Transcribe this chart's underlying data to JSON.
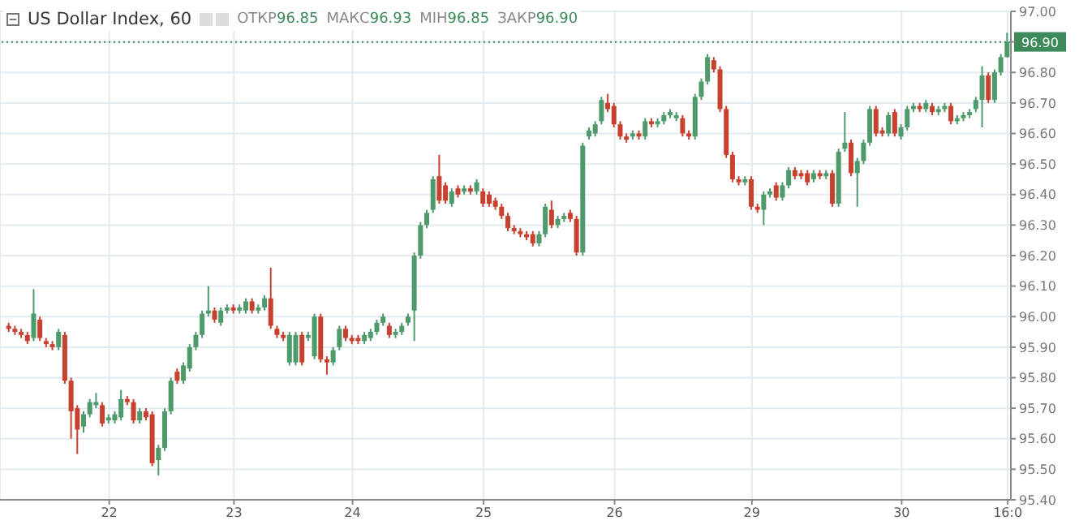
{
  "chart_data": {
    "type": "candlestick",
    "title": "US Dollar Index, 60",
    "annotations": [
      "ОТКР96.85",
      "МАКС96.93",
      "МІН96.85",
      "ЗАКР96.90"
    ],
    "categories": [
      null,
      null,
      null,
      null,
      null,
      null,
      null,
      null,
      null,
      null,
      null,
      null,
      null,
      null,
      null,
      null,
      "22",
      null,
      null,
      null,
      null,
      null,
      null,
      null,
      null,
      null,
      null,
      null,
      null,
      null,
      null,
      null,
      null,
      null,
      null,
      null,
      "23",
      null,
      null,
      null,
      null,
      null,
      null,
      null,
      null,
      null,
      null,
      null,
      null,
      null,
      null,
      null,
      null,
      null,
      null,
      "24",
      null,
      null,
      null,
      null,
      null,
      null,
      null,
      null,
      null,
      null,
      null,
      null,
      null,
      null,
      null,
      null,
      null,
      null,
      null,
      null,
      "25",
      null,
      null,
      null,
      null,
      null,
      null,
      null,
      null,
      null,
      null,
      null,
      null,
      null,
      null,
      null,
      null,
      null,
      null,
      null,
      null,
      "26",
      null,
      null,
      null,
      null,
      null,
      null,
      null,
      null,
      null,
      null,
      null,
      null,
      null,
      null,
      null,
      null,
      null,
      null,
      null,
      null,
      null,
      "29",
      null,
      null,
      null,
      null,
      null,
      null,
      null,
      null,
      null,
      null,
      null,
      null,
      null,
      null,
      null,
      null,
      null,
      null,
      null,
      null,
      null,
      null,
      null,
      "30",
      null,
      null,
      null,
      null,
      null,
      null,
      null,
      null,
      null,
      null,
      null,
      null,
      null,
      null,
      null,
      null,
      "16:0"
    ],
    "ohlc": [
      [
        95.97,
        95.98,
        95.95,
        95.96
      ],
      [
        95.96,
        95.97,
        95.94,
        95.95
      ],
      [
        95.95,
        95.96,
        95.93,
        95.94
      ],
      [
        95.94,
        95.95,
        95.91,
        95.92
      ],
      [
        95.93,
        96.09,
        95.92,
        96.01
      ],
      [
        95.99,
        96.0,
        95.92,
        95.93
      ],
      [
        95.92,
        95.93,
        95.9,
        95.91
      ],
      [
        95.91,
        95.92,
        95.89,
        95.9
      ],
      [
        95.9,
        95.96,
        95.89,
        95.95
      ],
      [
        95.94,
        95.95,
        95.78,
        95.79
      ],
      [
        95.79,
        95.8,
        95.6,
        95.69
      ],
      [
        95.7,
        95.71,
        95.55,
        95.63
      ],
      [
        95.64,
        95.69,
        95.62,
        95.68
      ],
      [
        95.68,
        95.73,
        95.67,
        95.72
      ],
      [
        95.71,
        95.75,
        95.7,
        95.72
      ],
      [
        95.71,
        95.72,
        95.64,
        95.65
      ],
      [
        95.66,
        95.68,
        95.65,
        95.67
      ],
      [
        95.66,
        95.69,
        95.65,
        95.68
      ],
      [
        95.67,
        95.76,
        95.66,
        95.73
      ],
      [
        95.73,
        95.74,
        95.71,
        95.72
      ],
      [
        95.72,
        95.73,
        95.65,
        95.66
      ],
      [
        95.66,
        95.7,
        95.65,
        95.69
      ],
      [
        95.69,
        95.7,
        95.66,
        95.67
      ],
      [
        95.68,
        95.69,
        95.51,
        95.52
      ],
      [
        95.53,
        95.58,
        95.48,
        95.57
      ],
      [
        95.57,
        95.7,
        95.56,
        95.69
      ],
      [
        95.69,
        95.8,
        95.68,
        95.79
      ],
      [
        95.82,
        95.83,
        95.78,
        95.79
      ],
      [
        95.79,
        95.85,
        95.78,
        95.84
      ],
      [
        95.83,
        95.91,
        95.82,
        95.9
      ],
      [
        95.9,
        95.95,
        95.89,
        95.94
      ],
      [
        95.94,
        96.02,
        95.93,
        96.01
      ],
      [
        96.01,
        96.1,
        96.0,
        96.02
      ],
      [
        96.02,
        96.03,
        95.98,
        95.99
      ],
      [
        95.98,
        96.03,
        95.97,
        96.02
      ],
      [
        96.02,
        96.04,
        96.01,
        96.03
      ],
      [
        96.03,
        96.04,
        96.01,
        96.02
      ],
      [
        96.02,
        96.04,
        96.01,
        96.03
      ],
      [
        96.02,
        96.06,
        96.01,
        96.05
      ],
      [
        96.05,
        96.06,
        96.01,
        96.02
      ],
      [
        96.02,
        96.04,
        96.01,
        96.03
      ],
      [
        96.03,
        96.07,
        96.02,
        96.06
      ],
      [
        96.06,
        96.16,
        95.96,
        95.97
      ],
      [
        95.96,
        95.97,
        95.93,
        95.94
      ],
      [
        95.94,
        95.95,
        95.92,
        95.93
      ],
      [
        95.85,
        95.95,
        95.84,
        95.94
      ],
      [
        95.85,
        95.95,
        95.84,
        95.94
      ],
      [
        95.94,
        95.95,
        95.84,
        95.85
      ],
      [
        95.93,
        95.95,
        95.92,
        95.94
      ],
      [
        95.87,
        96.01,
        95.86,
        96.0
      ],
      [
        96.0,
        96.01,
        95.85,
        95.86
      ],
      [
        95.86,
        95.87,
        95.81,
        95.85
      ],
      [
        95.85,
        95.9,
        95.84,
        95.89
      ],
      [
        95.9,
        95.97,
        95.89,
        95.96
      ],
      [
        95.96,
        95.97,
        95.92,
        95.93
      ],
      [
        95.93,
        95.94,
        95.91,
        95.92
      ],
      [
        95.93,
        95.94,
        95.91,
        95.92
      ],
      [
        95.92,
        95.95,
        95.91,
        95.94
      ],
      [
        95.93,
        95.96,
        95.92,
        95.95
      ],
      [
        95.95,
        95.99,
        95.94,
        95.98
      ],
      [
        95.98,
        96.01,
        95.97,
        96.0
      ],
      [
        95.97,
        95.98,
        95.93,
        95.94
      ],
      [
        95.94,
        95.96,
        95.93,
        95.95
      ],
      [
        95.95,
        95.98,
        95.94,
        95.97
      ],
      [
        95.98,
        96.01,
        95.97,
        96.0
      ],
      [
        96.02,
        96.21,
        95.92,
        96.2
      ],
      [
        96.2,
        96.31,
        96.19,
        96.3
      ],
      [
        96.3,
        96.35,
        96.29,
        96.34
      ],
      [
        96.35,
        96.46,
        96.34,
        96.45
      ],
      [
        96.46,
        96.53,
        96.37,
        96.38
      ],
      [
        96.43,
        96.44,
        96.37,
        96.38
      ],
      [
        96.37,
        96.42,
        96.36,
        96.41
      ],
      [
        96.42,
        96.43,
        96.39,
        96.4
      ],
      [
        96.41,
        96.43,
        96.4,
        96.42
      ],
      [
        96.42,
        96.43,
        96.4,
        96.41
      ],
      [
        96.41,
        96.45,
        96.4,
        96.44
      ],
      [
        96.41,
        96.42,
        96.36,
        96.37
      ],
      [
        96.4,
        96.41,
        96.36,
        96.37
      ],
      [
        96.38,
        96.39,
        96.35,
        96.36
      ],
      [
        96.36,
        96.37,
        96.32,
        96.33
      ],
      [
        96.33,
        96.34,
        96.28,
        96.29
      ],
      [
        96.29,
        96.3,
        96.27,
        96.28
      ],
      [
        96.28,
        96.29,
        96.26,
        96.27
      ],
      [
        96.27,
        96.28,
        96.25,
        96.26
      ],
      [
        96.27,
        96.28,
        96.23,
        96.24
      ],
      [
        96.24,
        96.28,
        96.23,
        96.27
      ],
      [
        96.27,
        96.37,
        96.26,
        96.36
      ],
      [
        96.35,
        96.38,
        96.29,
        96.3
      ],
      [
        96.3,
        96.33,
        96.29,
        96.32
      ],
      [
        96.32,
        96.34,
        96.31,
        96.33
      ],
      [
        96.34,
        96.35,
        96.31,
        96.32
      ],
      [
        96.32,
        96.33,
        96.2,
        96.21
      ],
      [
        96.21,
        96.57,
        96.2,
        96.56
      ],
      [
        96.59,
        96.62,
        96.58,
        96.61
      ],
      [
        96.6,
        96.64,
        96.59,
        96.63
      ],
      [
        96.64,
        96.72,
        96.63,
        96.71
      ],
      [
        96.7,
        96.73,
        96.67,
        96.68
      ],
      [
        96.69,
        96.7,
        96.62,
        96.63
      ],
      [
        96.63,
        96.64,
        96.58,
        96.59
      ],
      [
        96.59,
        96.6,
        96.57,
        96.58
      ],
      [
        96.59,
        96.61,
        96.58,
        96.6
      ],
      [
        96.6,
        96.61,
        96.58,
        96.59
      ],
      [
        96.59,
        96.65,
        96.58,
        96.64
      ],
      [
        96.64,
        96.65,
        96.62,
        96.63
      ],
      [
        96.63,
        96.65,
        96.62,
        96.64
      ],
      [
        96.64,
        96.67,
        96.63,
        96.66
      ],
      [
        96.66,
        96.68,
        96.65,
        96.67
      ],
      [
        96.65,
        96.67,
        96.64,
        96.66
      ],
      [
        96.65,
        96.66,
        96.59,
        96.6
      ],
      [
        96.6,
        96.61,
        96.58,
        96.59
      ],
      [
        96.59,
        96.73,
        96.58,
        96.72
      ],
      [
        96.72,
        96.78,
        96.71,
        96.77
      ],
      [
        96.77,
        96.86,
        96.76,
        96.85
      ],
      [
        96.84,
        96.85,
        96.8,
        96.81
      ],
      [
        96.81,
        96.82,
        96.67,
        96.68
      ],
      [
        96.68,
        96.69,
        96.52,
        96.53
      ],
      [
        96.53,
        96.54,
        96.44,
        96.45
      ],
      [
        96.45,
        96.46,
        96.43,
        96.44
      ],
      [
        96.44,
        96.46,
        96.43,
        96.45
      ],
      [
        96.45,
        96.46,
        96.35,
        96.36
      ],
      [
        96.36,
        96.37,
        96.34,
        96.35
      ],
      [
        96.35,
        96.41,
        96.3,
        96.4
      ],
      [
        96.4,
        96.42,
        96.39,
        96.41
      ],
      [
        96.43,
        96.44,
        96.38,
        96.39
      ],
      [
        96.39,
        96.44,
        96.38,
        96.43
      ],
      [
        96.43,
        96.49,
        96.42,
        96.48
      ],
      [
        96.48,
        96.49,
        96.45,
        96.46
      ],
      [
        96.47,
        96.48,
        96.45,
        96.46
      ],
      [
        96.47,
        96.48,
        96.43,
        96.44
      ],
      [
        96.45,
        96.48,
        96.44,
        96.47
      ],
      [
        96.47,
        96.48,
        96.45,
        96.46
      ],
      [
        96.46,
        96.48,
        96.45,
        96.47
      ],
      [
        96.47,
        96.48,
        96.36,
        96.37
      ],
      [
        96.37,
        96.55,
        96.36,
        96.54
      ],
      [
        96.55,
        96.67,
        96.54,
        96.57
      ],
      [
        96.57,
        96.58,
        96.46,
        96.47
      ],
      [
        96.47,
        96.52,
        96.36,
        96.51
      ],
      [
        96.51,
        96.58,
        96.5,
        96.57
      ],
      [
        96.57,
        96.69,
        96.56,
        96.68
      ],
      [
        96.68,
        96.69,
        96.59,
        96.6
      ],
      [
        96.61,
        96.62,
        96.59,
        96.6
      ],
      [
        96.6,
        96.67,
        96.59,
        96.66
      ],
      [
        96.67,
        96.68,
        96.59,
        96.6
      ],
      [
        96.59,
        96.63,
        96.58,
        96.62
      ],
      [
        96.62,
        96.69,
        96.61,
        96.68
      ],
      [
        96.68,
        96.7,
        96.67,
        96.69
      ],
      [
        96.69,
        96.7,
        96.67,
        96.68
      ],
      [
        96.68,
        96.71,
        96.67,
        96.7
      ],
      [
        96.69,
        96.7,
        96.66,
        96.67
      ],
      [
        96.67,
        96.69,
        96.66,
        96.68
      ],
      [
        96.68,
        96.7,
        96.67,
        96.69
      ],
      [
        96.69,
        96.7,
        96.63,
        96.64
      ],
      [
        96.64,
        96.66,
        96.63,
        96.65
      ],
      [
        96.65,
        96.67,
        96.64,
        96.66
      ],
      [
        96.66,
        96.68,
        96.65,
        96.67
      ],
      [
        96.68,
        96.72,
        96.67,
        96.71
      ],
      [
        96.71,
        96.82,
        96.62,
        96.79
      ],
      [
        96.79,
        96.8,
        96.7,
        96.71
      ],
      [
        96.71,
        96.81,
        96.7,
        96.8
      ],
      [
        96.8,
        96.86,
        96.79,
        96.85
      ],
      [
        96.85,
        96.93,
        96.85,
        96.9
      ]
    ],
    "colors": [
      "#c8412f",
      "#c8412f",
      "#c8412f",
      "#c8412f",
      "#4e9a6b",
      "#c8412f",
      "#c8412f",
      "#c8412f",
      "#4e9a6b",
      "#c8412f",
      "#c8412f",
      "#c8412f",
      "#4e9a6b",
      "#4e9a6b",
      "#4e9a6b",
      "#c8412f",
      "#4e9a6b",
      "#4e9a6b",
      "#4e9a6b",
      "#c8412f",
      "#c8412f",
      "#4e9a6b",
      "#c8412f",
      "#c8412f",
      "#4e9a6b",
      "#4e9a6b",
      "#4e9a6b",
      "#c8412f",
      "#4e9a6b",
      "#4e9a6b",
      "#4e9a6b",
      "#4e9a6b",
      "#4e9a6b",
      "#c8412f",
      "#4e9a6b",
      "#4e9a6b",
      "#c8412f",
      "#4e9a6b",
      "#4e9a6b",
      "#c8412f",
      "#4e9a6b",
      "#4e9a6b",
      "#c8412f",
      "#c8412f",
      "#c8412f",
      "#4e9a6b",
      "#4e9a6b",
      "#c8412f",
      "#4e9a6b",
      "#4e9a6b",
      "#c8412f",
      "#c8412f",
      "#4e9a6b",
      "#4e9a6b",
      "#c8412f",
      "#c8412f",
      "#c8412f",
      "#4e9a6b",
      "#4e9a6b",
      "#4e9a6b",
      "#4e9a6b",
      "#c8412f",
      "#4e9a6b",
      "#4e9a6b",
      "#4e9a6b",
      "#4e9a6b",
      "#4e9a6b",
      "#4e9a6b",
      "#4e9a6b",
      "#c8412f",
      "#c8412f",
      "#4e9a6b",
      "#c8412f",
      "#4e9a6b",
      "#c8412f",
      "#4e9a6b",
      "#c8412f",
      "#c8412f",
      "#c8412f",
      "#c8412f",
      "#c8412f",
      "#c8412f",
      "#c8412f",
      "#c8412f",
      "#c8412f",
      "#4e9a6b",
      "#4e9a6b",
      "#c8412f",
      "#4e9a6b",
      "#4e9a6b",
      "#c8412f",
      "#c8412f",
      "#4e9a6b",
      "#4e9a6b",
      "#4e9a6b",
      "#4e9a6b",
      "#c8412f",
      "#c8412f",
      "#c8412f",
      "#c8412f",
      "#4e9a6b",
      "#c8412f",
      "#4e9a6b",
      "#c8412f",
      "#4e9a6b",
      "#4e9a6b",
      "#4e9a6b",
      "#4e9a6b",
      "#c8412f",
      "#c8412f",
      "#4e9a6b",
      "#4e9a6b",
      "#4e9a6b",
      "#c8412f",
      "#c8412f",
      "#c8412f",
      "#c8412f",
      "#c8412f",
      "#4e9a6b",
      "#c8412f",
      "#c8412f",
      "#4e9a6b",
      "#4e9a6b",
      "#c8412f",
      "#4e9a6b",
      "#4e9a6b",
      "#c8412f",
      "#c8412f",
      "#c8412f",
      "#4e9a6b",
      "#c8412f",
      "#4e9a6b",
      "#c8412f",
      "#4e9a6b",
      "#4e9a6b",
      "#c8412f",
      "#4e9a6b",
      "#4e9a6b",
      "#4e9a6b",
      "#c8412f",
      "#c8412f",
      "#4e9a6b",
      "#c8412f",
      "#4e9a6b",
      "#4e9a6b",
      "#4e9a6b",
      "#c8412f",
      "#4e9a6b",
      "#c8412f",
      "#4e9a6b",
      "#4e9a6b",
      "#c8412f",
      "#4e9a6b",
      "#4e9a6b",
      "#4e9a6b",
      "#4e9a6b",
      "#4e9a6b",
      "#c8412f",
      "#4e9a6b",
      "#4e9a6b",
      "#4e9a6b"
    ],
    "ylim": [
      95.4,
      97.0
    ],
    "yticks": [
      {
        "value": 95.4,
        "label": "95.40"
      },
      {
        "value": 95.5,
        "label": "95.50"
      },
      {
        "value": 95.6,
        "label": "95.60"
      },
      {
        "value": 95.7,
        "label": "95.70"
      },
      {
        "value": 95.8,
        "label": "95.80"
      },
      {
        "value": 95.9,
        "label": "95.90"
      },
      {
        "value": 96.0,
        "label": "96.00"
      },
      {
        "value": 96.1,
        "label": "96.10"
      },
      {
        "value": 96.2,
        "label": "96.20"
      },
      {
        "value": 96.3,
        "label": "96.30"
      },
      {
        "value": 96.4,
        "label": "96.40"
      },
      {
        "value": 96.5,
        "label": "96.50"
      },
      {
        "value": 96.6,
        "label": "96.60"
      },
      {
        "value": 96.7,
        "label": "96.70"
      },
      {
        "value": 96.8,
        "label": "96.80"
      },
      {
        "value": 96.9,
        "label": null
      },
      {
        "value": 97.0,
        "label": "97.00"
      }
    ],
    "ref_lines": [
      {
        "axis": "y",
        "value": 96.9,
        "label": "96.90",
        "color": "#3d8a5a",
        "line_style": "dotted"
      }
    ],
    "grid": true
  }
}
